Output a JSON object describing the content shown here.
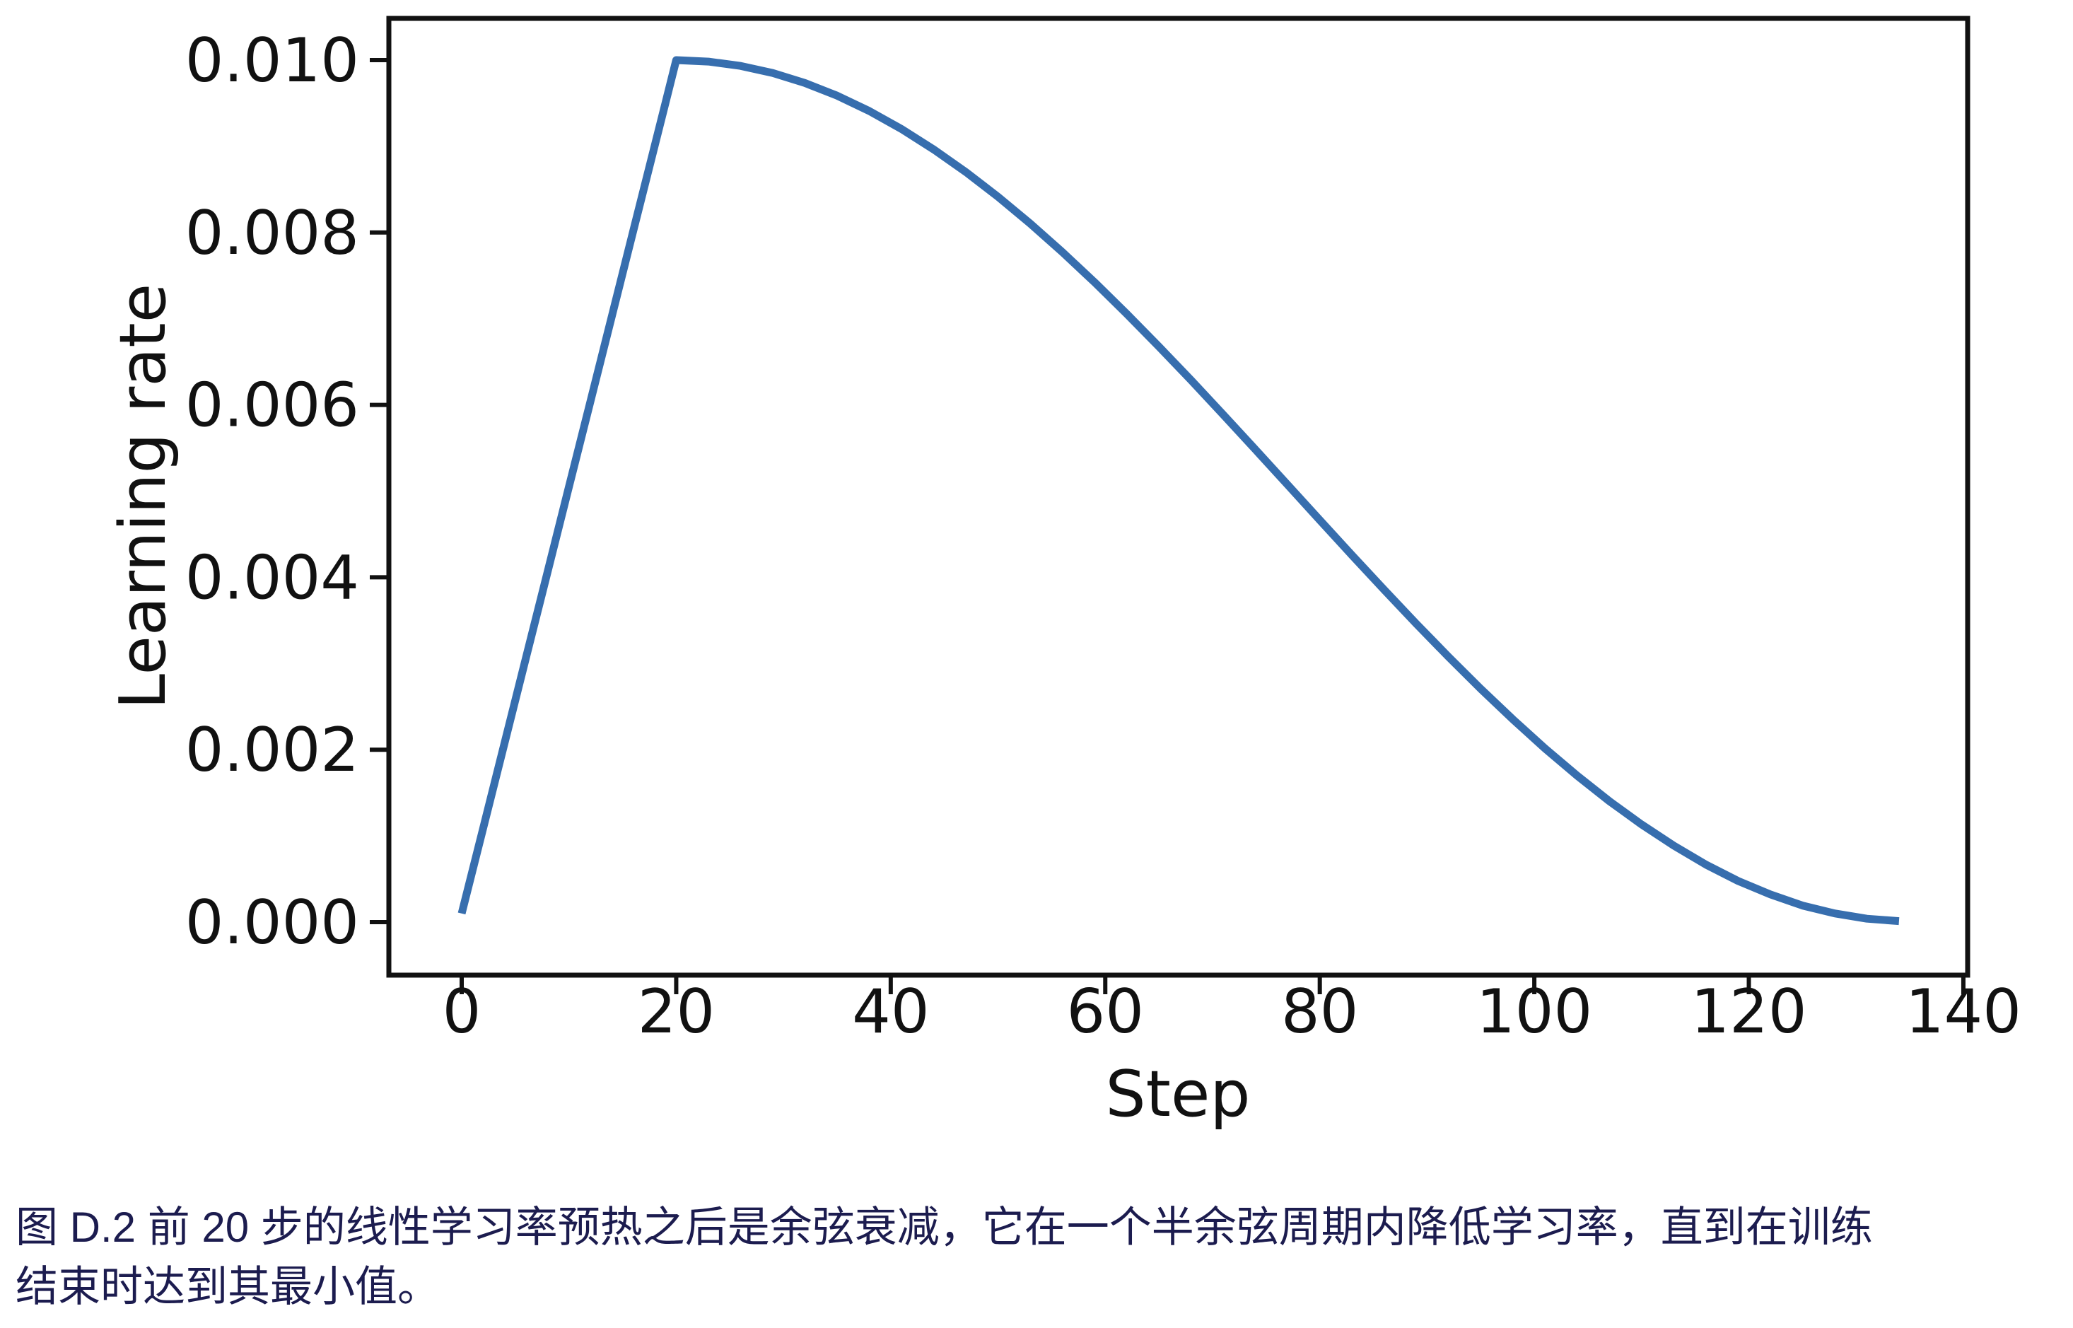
{
  "caption": {
    "color": "#1c1c4f",
    "lines": [
      "图 D.2 前 20 步的线性学习率预热之后是余弦衰减，它在一个半余弦周期内降低学习率，直到在训练",
      "结束时达到其最小值。"
    ]
  },
  "chart_data": {
    "type": "line",
    "xlabel": "Step",
    "ylabel": "Learning rate",
    "grid": false,
    "legend": false,
    "background_color": "#ffffff",
    "axis_color": "#111111",
    "line_color": "#376eae",
    "line_width": 11,
    "xlim": [
      -6.79,
      140.4
    ],
    "ylim": [
      -0.000615,
      0.010484
    ],
    "xticks": [
      0,
      20,
      40,
      60,
      80,
      100,
      120,
      140
    ],
    "xtick_labels": [
      "0",
      "20",
      "40",
      "60",
      "80",
      "100",
      "120",
      "140"
    ],
    "yticks": [
      0.0,
      0.002,
      0.004,
      0.006,
      0.008,
      0.01
    ],
    "ytick_labels": [
      "0.000",
      "0.002",
      "0.004",
      "0.006",
      "0.008",
      "0.010"
    ],
    "description": "Linear learning-rate warmup over the first 20 steps from 0.0001 to peak 0.01, followed by cosine decay over a half cosine cycle down to the minimum near 0 at the final training step (~135 steps total)",
    "series": [
      {
        "name": "learning_rate",
        "x": [
          0,
          2,
          4,
          6,
          8,
          10,
          12,
          14,
          16,
          18,
          19,
          20,
          23,
          26,
          29,
          32,
          35,
          38,
          41,
          44,
          47,
          50,
          53,
          56,
          59,
          62,
          65,
          68,
          71,
          74,
          77,
          80,
          83,
          86,
          89,
          92,
          95,
          98,
          101,
          104,
          107,
          110,
          113,
          116,
          119,
          122,
          125,
          128,
          131,
          134
        ],
        "y": [
          0.0001,
          0.00109,
          0.00208,
          0.00307,
          0.00406,
          0.00505,
          0.00604,
          0.00703,
          0.00802,
          0.00901,
          0.009505,
          0.01,
          0.009983,
          0.009933,
          0.00985,
          0.009734,
          0.009587,
          0.009409,
          0.009201,
          0.008964,
          0.008702,
          0.008414,
          0.008104,
          0.007773,
          0.007423,
          0.007057,
          0.006677,
          0.006287,
          0.005887,
          0.005482,
          0.005073,
          0.004664,
          0.004257,
          0.003856,
          0.003461,
          0.003078,
          0.002707,
          0.002352,
          0.002014,
          0.001698,
          0.001403,
          0.001133,
          0.000888,
          0.000667,
          0.000478,
          0.000322,
          0.000192,
          0.000101,
          4e-05,
          1.2e-05
        ]
      }
    ]
  }
}
